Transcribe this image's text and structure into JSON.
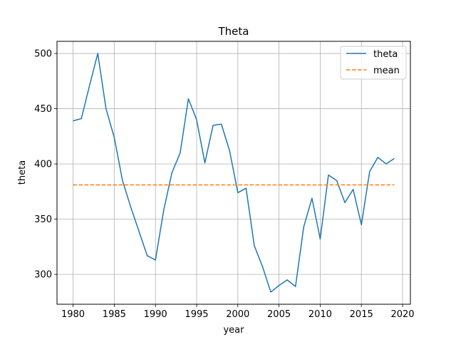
{
  "chart_data": {
    "type": "line",
    "title": "Theta",
    "xlabel": "year",
    "ylabel": "theta",
    "xlim": [
      1978.05,
      2020.95
    ],
    "ylim": [
      273,
      511
    ],
    "xticks": [
      1980,
      1985,
      1990,
      1995,
      2000,
      2005,
      2010,
      2015,
      2020
    ],
    "yticks": [
      300,
      350,
      400,
      450,
      500
    ],
    "grid": true,
    "legend_position": "top-right",
    "x": [
      1980,
      1981,
      1982,
      1983,
      1984,
      1985,
      1986,
      1987,
      1988,
      1989,
      1990,
      1991,
      1992,
      1993,
      1994,
      1995,
      1996,
      1997,
      1998,
      1999,
      2000,
      2001,
      2002,
      2003,
      2004,
      2005,
      2006,
      2007,
      2008,
      2009,
      2010,
      2011,
      2012,
      2013,
      2014,
      2015,
      2016,
      2017,
      2018,
      2019
    ],
    "series": [
      {
        "name": "theta",
        "color": "#1f77b4",
        "style": "solid",
        "values": [
          439,
          441,
          471,
          500,
          450,
          424,
          385,
          361,
          339,
          317,
          313,
          358,
          392,
          410,
          459,
          440,
          401,
          435,
          436,
          412,
          374,
          378,
          326,
          307,
          284,
          290,
          295,
          289,
          343,
          369,
          332,
          390,
          385,
          365,
          377,
          345,
          393,
          406,
          400,
          405
        ]
      },
      {
        "name": "mean",
        "color": "#ff7f0e",
        "style": "dashed",
        "values": [
          381,
          381,
          381,
          381,
          381,
          381,
          381,
          381,
          381,
          381,
          381,
          381,
          381,
          381,
          381,
          381,
          381,
          381,
          381,
          381,
          381,
          381,
          381,
          381,
          381,
          381,
          381,
          381,
          381,
          381,
          381,
          381,
          381,
          381,
          381,
          381,
          381,
          381,
          381,
          381
        ]
      }
    ]
  }
}
